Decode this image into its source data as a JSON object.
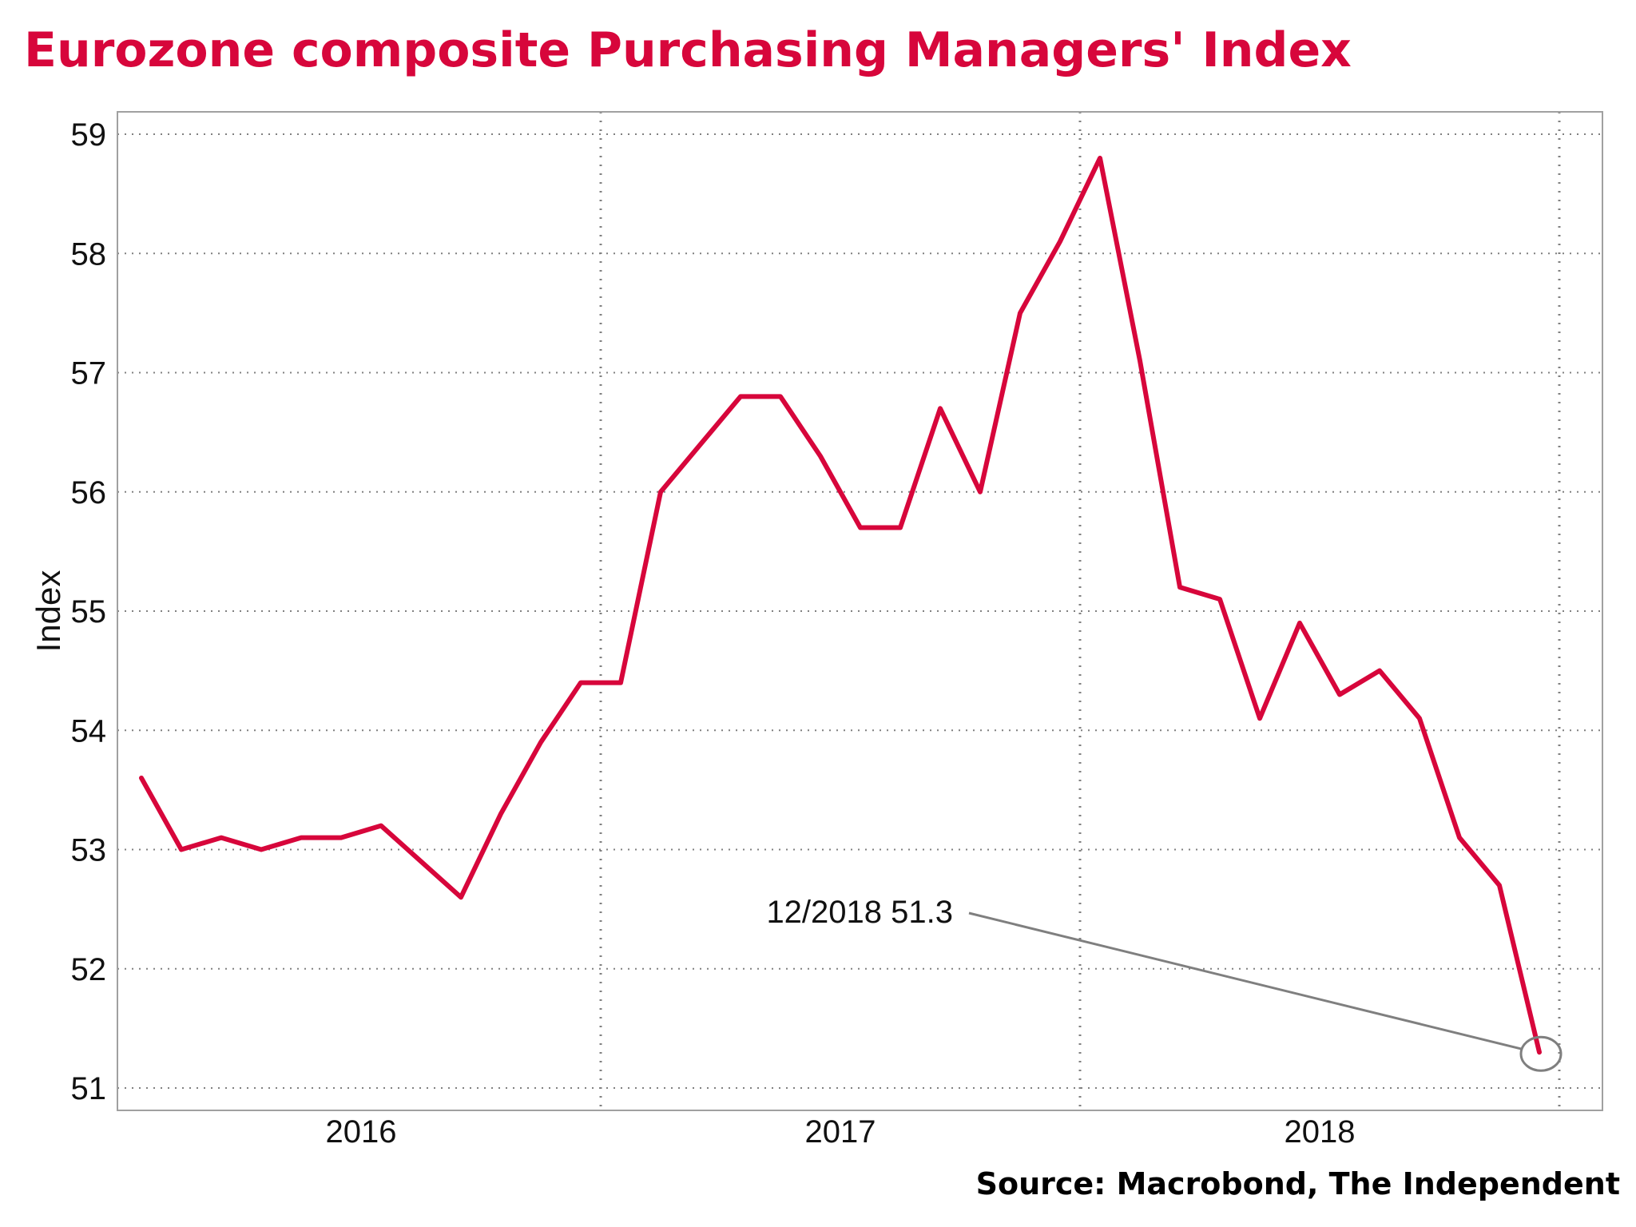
{
  "chart_data": {
    "type": "line",
    "title": "Eurozone composite Purchasing Managers' Index",
    "source": "Source: Macrobond, The Independent",
    "ylabel": "Index",
    "xlabel": "",
    "ylim": [
      51,
      59
    ],
    "yticks": [
      51,
      52,
      53,
      54,
      55,
      56,
      57,
      58,
      59
    ],
    "year_labels": [
      "2016",
      "2017",
      "2018"
    ],
    "grid": true,
    "colors": {
      "line": "#d7063b",
      "title": "#d7063b",
      "annotation": "#7f7f7f",
      "grid": "#808080",
      "frame": "#a0a0a0"
    },
    "series": [
      {
        "x": [
          "01/2016",
          "02/2016",
          "03/2016",
          "04/2016",
          "05/2016",
          "06/2016",
          "07/2016",
          "08/2016",
          "09/2016",
          "10/2016",
          "11/2016",
          "12/2016",
          "01/2017",
          "02/2017",
          "03/2017",
          "04/2017",
          "05/2017",
          "06/2017",
          "07/2017",
          "08/2017",
          "09/2017",
          "10/2017",
          "11/2017",
          "12/2017",
          "01/2018",
          "02/2018",
          "03/2018",
          "04/2018",
          "05/2018",
          "06/2018",
          "07/2018",
          "08/2018",
          "09/2018",
          "10/2018",
          "11/2018",
          "12/2018"
        ],
        "values": [
          53.6,
          53.0,
          53.1,
          53.0,
          53.1,
          53.1,
          53.2,
          52.9,
          52.6,
          53.3,
          53.9,
          54.4,
          54.4,
          56.0,
          56.4,
          56.8,
          56.8,
          56.3,
          55.7,
          55.7,
          56.7,
          56.0,
          57.5,
          58.1,
          58.8,
          57.1,
          55.2,
          55.1,
          54.1,
          54.9,
          54.3,
          54.5,
          54.1,
          53.1,
          52.7,
          51.3
        ]
      }
    ],
    "annotation": {
      "text": "12/2018 51.3",
      "x": "12/2018",
      "y": 51.3
    }
  }
}
